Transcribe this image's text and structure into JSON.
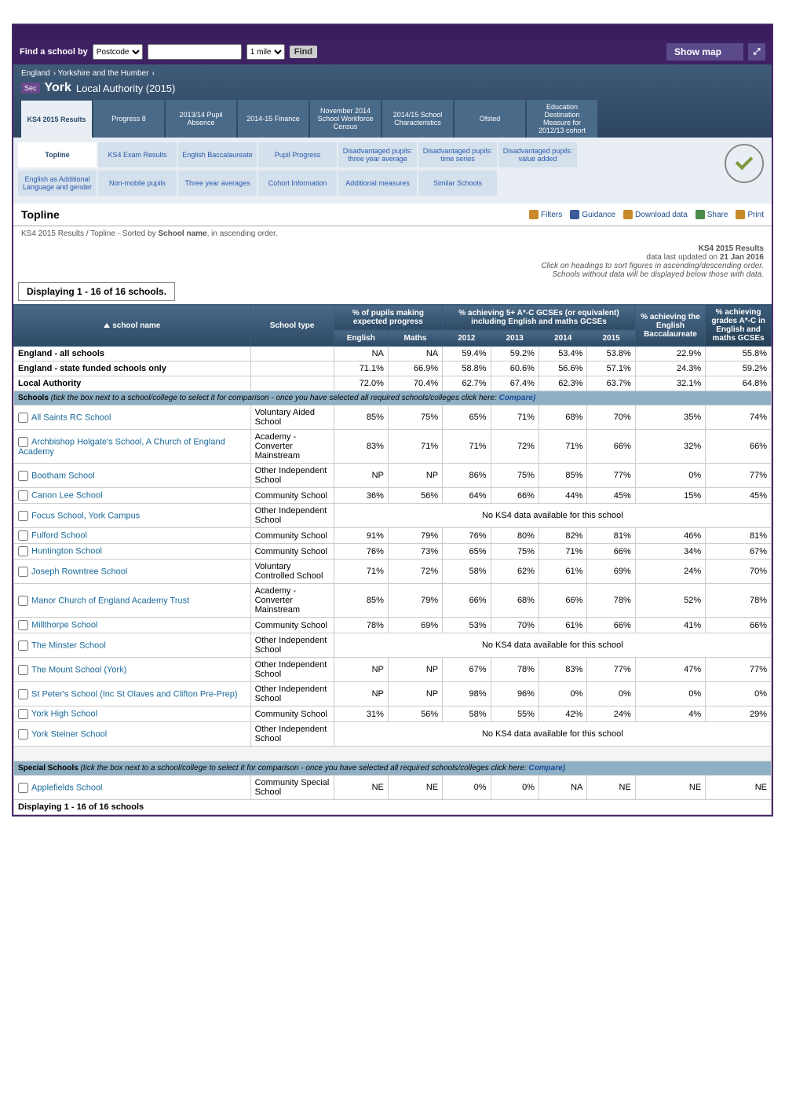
{
  "searchbar": {
    "label": "Find a school by",
    "option": "Postcode",
    "radius": "1 mile",
    "go": "Find"
  },
  "showmap": "Show map",
  "breadcrumb": [
    "England",
    "Yorkshire and the Humber"
  ],
  "sec": "Sec",
  "la": "York",
  "laSub": "Local Authority (2015)",
  "nav1": [
    "KS4 2015 Results",
    "Progress 8",
    "2013/14 Pupil Absence",
    "2014-15 Finance",
    "November 2014 School Workforce Census",
    "2014/15 School Characteristics",
    "Ofsted",
    "Education Destination Measure for 2012/13 cohort"
  ],
  "nav2": [
    "Topline",
    "KS4 Exam Results",
    "English Baccalaureate",
    "Pupil Progress",
    "Disadvantaged pupils: three year average",
    "Disadvantaged pupils: time series",
    "Disadvantaged pupils: value added"
  ],
  "nav3": [
    "English as Additional Language and gender",
    "Non-mobile pupils",
    "Three year averages",
    "Cohort Information",
    "Additional measures",
    "Similar Schools"
  ],
  "sectionTitle": "Topline",
  "tools": {
    "filters": "Filters",
    "guidance": "Guidance",
    "download": "Download data",
    "share": "Share",
    "print": "Print"
  },
  "sortinfo": {
    "pre": "KS4 2015 Results / Topline - Sorted by ",
    "b": "School name",
    "post": ", in ascending order."
  },
  "meta": {
    "t": "KS4 2015 Results",
    "d1": "data last updated on ",
    "d2": "21 Jan 2016",
    "i1": "Click on headings to sort figures in ascending/descending order.",
    "i2": "Schools without data will be displayed below those with data."
  },
  "displaying": "Displaying 1 - 16 of 16 schools.",
  "cols": {
    "schoolName": "school name",
    "schoolType": "School type",
    "progHdr": "% of pupils making expected progress",
    "eng": "English",
    "maths": "Maths",
    "achHdr": "% achieving 5+ A*-C GCSEs (or equivalent) including English and maths GCSEs",
    "y12": "2012",
    "y13": "2013",
    "y14": "2014",
    "y15": "2015",
    "ebacc": "% achieving the English Baccalaureate",
    "engmath": "% achieving grades A*-C in English and maths GCSEs"
  },
  "section1": {
    "pre": "Schools ",
    "mid": "(tick the box next to a school/college to select it for comparison - once you have selected all required schools/colleges click here: ",
    "compare": "Compare)"
  },
  "section2": {
    "pre": "Special Schools ",
    "mid": "(tick the box next to a school/college to select it for comparison - once you have selected all required schools/colleges click here: ",
    "compare": "Compare)"
  },
  "nodata": "No KS4 data available for this school",
  "summary": [
    {
      "name": "England - all schools",
      "eng": "NA",
      "maths": "NA",
      "y12": "59.4%",
      "y13": "59.2%",
      "y14": "53.4%",
      "y15": "53.8%",
      "eb": "22.9%",
      "em": "55.8%"
    },
    {
      "name": "England - state funded schools only",
      "eng": "71.1%",
      "maths": "66.9%",
      "y12": "58.8%",
      "y13": "60.6%",
      "y14": "56.6%",
      "y15": "57.1%",
      "eb": "24.3%",
      "em": "59.2%"
    },
    {
      "name": "Local Authority",
      "eng": "72.0%",
      "maths": "70.4%",
      "y12": "62.7%",
      "y13": "67.4%",
      "y14": "62.3%",
      "y15": "63.7%",
      "eb": "32.1%",
      "em": "64.8%"
    }
  ],
  "schools": [
    {
      "name": "All Saints RC School",
      "type": "Voluntary Aided School",
      "eng": "85%",
      "maths": "75%",
      "y12": "65%",
      "y13": "71%",
      "y14": "68%",
      "y15": "70%",
      "eb": "35%",
      "em": "74%"
    },
    {
      "name": "Archbishop Holgate's School, A Church of England Academy",
      "type": "Academy - Converter Mainstream",
      "eng": "83%",
      "maths": "71%",
      "y12": "71%",
      "y13": "72%",
      "y14": "71%",
      "y15": "66%",
      "eb": "32%",
      "em": "66%"
    },
    {
      "name": "Bootham School",
      "type": "Other Independent School",
      "eng": "NP",
      "maths": "NP",
      "y12": "86%",
      "y13": "75%",
      "y14": "85%",
      "y15": "77%",
      "eb": "0%",
      "em": "77%"
    },
    {
      "name": "Canon Lee School",
      "type": "Community School",
      "eng": "36%",
      "maths": "56%",
      "y12": "64%",
      "y13": "66%",
      "y14": "44%",
      "y15": "45%",
      "eb": "15%",
      "em": "45%"
    },
    {
      "name": "Focus School, York Campus",
      "type": "Other Independent School",
      "nodata": true
    },
    {
      "name": "Fulford School",
      "type": "Community School",
      "eng": "91%",
      "maths": "79%",
      "y12": "76%",
      "y13": "80%",
      "y14": "82%",
      "y15": "81%",
      "eb": "46%",
      "em": "81%"
    },
    {
      "name": "Huntington School",
      "type": "Community School",
      "eng": "76%",
      "maths": "73%",
      "y12": "65%",
      "y13": "75%",
      "y14": "71%",
      "y15": "66%",
      "eb": "34%",
      "em": "67%"
    },
    {
      "name": "Joseph Rowntree School",
      "type": "Voluntary Controlled School",
      "eng": "71%",
      "maths": "72%",
      "y12": "58%",
      "y13": "62%",
      "y14": "61%",
      "y15": "69%",
      "eb": "24%",
      "em": "70%"
    },
    {
      "name": "Manor Church of England Academy Trust",
      "type": "Academy - Converter Mainstream",
      "eng": "85%",
      "maths": "79%",
      "y12": "66%",
      "y13": "68%",
      "y14": "66%",
      "y15": "78%",
      "eb": "52%",
      "em": "78%"
    },
    {
      "name": "Millthorpe School",
      "type": "Community School",
      "eng": "78%",
      "maths": "69%",
      "y12": "53%",
      "y13": "70%",
      "y14": "61%",
      "y15": "66%",
      "eb": "41%",
      "em": "66%"
    },
    {
      "name": "The Minster School",
      "type": "Other Independent School",
      "nodata": true
    },
    {
      "name": "The Mount School (York)",
      "type": "Other Independent School",
      "eng": "NP",
      "maths": "NP",
      "y12": "67%",
      "y13": "78%",
      "y14": "83%",
      "y15": "77%",
      "eb": "47%",
      "em": "77%"
    },
    {
      "name": "St Peter's School (Inc St Olaves and Clifton Pre-Prep)",
      "type": "Other Independent School",
      "eng": "NP",
      "maths": "NP",
      "y12": "98%",
      "y13": "96%",
      "y14": "0%",
      "y15": "0%",
      "eb": "0%",
      "em": "0%"
    },
    {
      "name": "York High School",
      "type": "Community School",
      "eng": "31%",
      "maths": "56%",
      "y12": "58%",
      "y13": "55%",
      "y14": "42%",
      "y15": "24%",
      "eb": "4%",
      "em": "29%"
    },
    {
      "name": "York Steiner School",
      "type": "Other Independent School",
      "nodata": true
    }
  ],
  "special": [
    {
      "name": "Applefields School",
      "type": "Community Special School",
      "eng": "NE",
      "maths": "NE",
      "y12": "0%",
      "y13": "0%",
      "y14": "NA",
      "y15": "NE",
      "eb": "NE",
      "em": "NE"
    }
  ],
  "displaying2": "Displaying 1 - 16 of 16 schools",
  "colors": {
    "hdrBg": "#3a5a78",
    "sectionBg": "#8fb0c4",
    "link": "#1a6a9a"
  }
}
